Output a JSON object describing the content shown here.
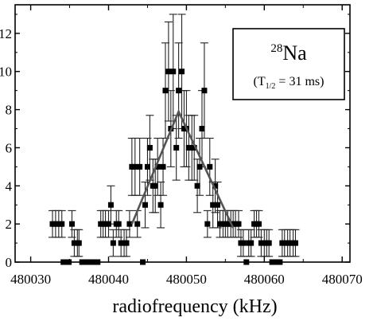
{
  "chart_data": {
    "type": "scatter",
    "xlabel": "radiofrequency (kHz)",
    "ylabel": "",
    "xlim": [
      480028,
      480071
    ],
    "ylim": [
      0,
      13.5
    ],
    "x_ticks": [
      "480030",
      "480040",
      "480050",
      "480060",
      "480070"
    ],
    "x_tick_values": [
      480030,
      480040,
      480050,
      480060,
      480070
    ],
    "y_ticks": [
      "0",
      "2",
      "4",
      "6",
      "8",
      "10",
      "12"
    ],
    "y_tick_values": [
      0,
      2,
      4,
      6,
      8,
      10,
      12
    ],
    "annotation": {
      "superscript": "28",
      "element": "Na",
      "half_life_open": "(T",
      "half_life_sub": "1/2",
      "half_life_rest": " = 31 ms)"
    },
    "series": [
      {
        "kind": "points_with_errorbars",
        "x": [
          480032.8,
          480033.2,
          480033.6,
          480034.0,
          480034.2,
          480034.5,
          480034.9,
          480035.3,
          480035.6,
          480036.0,
          480036.2,
          480036.6,
          480037.0,
          480037.3,
          480037.6,
          480038.0,
          480038.4,
          480038.6,
          480039.0,
          480039.3,
          480039.6,
          480040.0,
          480040.3,
          480040.6,
          480041.0,
          480041.3,
          480041.6,
          480042.0,
          480042.3,
          480042.7,
          480043.0,
          480043.4,
          480043.7,
          480044.0,
          480044.4,
          480044.7,
          480045.0,
          480045.3,
          480045.7,
          480046.0,
          480046.3,
          480046.7,
          480047.0,
          480047.3,
          480047.7,
          480048.0,
          480048.3,
          480048.7,
          480049.0,
          480049.4,
          480049.7,
          480050.0,
          480050.3,
          480050.7,
          480051.0,
          480051.4,
          480051.7,
          480052.0,
          480052.3,
          480052.7,
          480053.0,
          480053.4,
          480053.7,
          480054.0,
          480054.3,
          480054.7,
          480055.0,
          480055.3,
          480055.7,
          480056.0,
          480056.3,
          480056.7,
          480057.0,
          480057.3,
          480057.7,
          480058.0,
          480058.3,
          480058.7,
          480059.0,
          480059.3,
          480059.6,
          480060.0,
          480060.3,
          480060.6,
          480061.0,
          480061.3,
          480061.6,
          480062.0,
          480062.3,
          480062.6,
          480063.0,
          480063.3,
          480063.7,
          480064.0
        ],
        "y": [
          2,
          2,
          2,
          2,
          0,
          0,
          0,
          2,
          1,
          1,
          1,
          0,
          0,
          0,
          0,
          0,
          0,
          0,
          2,
          2,
          2,
          2,
          3,
          1,
          2,
          2,
          1,
          1,
          1,
          2,
          5,
          5,
          2,
          5,
          0,
          3,
          5,
          6,
          4,
          4,
          5,
          3,
          5,
          9,
          10,
          7,
          10,
          6,
          9,
          10,
          7,
          7,
          6,
          6,
          6,
          4,
          5,
          7,
          9,
          2,
          5,
          3,
          4,
          3,
          2,
          2,
          2,
          2,
          2,
          2,
          2,
          2,
          1,
          1,
          0,
          1,
          1,
          2,
          2,
          2,
          1,
          1,
          1,
          1,
          0,
          0,
          0,
          0,
          1,
          1,
          1,
          1,
          1,
          1
        ],
        "err": [
          0.7,
          0.7,
          0.7,
          0.7,
          0,
          0,
          0,
          0.7,
          0.7,
          0.7,
          0.7,
          0,
          0,
          0,
          0,
          0,
          0,
          0,
          0.7,
          0.7,
          0.7,
          0.7,
          1.0,
          0.7,
          0.7,
          0.7,
          0.7,
          0.7,
          0.7,
          0.7,
          1.5,
          1.5,
          0.7,
          1.5,
          0,
          1.2,
          1.5,
          1.7,
          1.4,
          1.4,
          1.5,
          1.2,
          1.5,
          2.5,
          2.6,
          2.0,
          3.0,
          1.7,
          2.5,
          3.0,
          2.0,
          2.0,
          1.7,
          1.7,
          1.7,
          1.4,
          1.5,
          2.0,
          2.5,
          0.7,
          1.5,
          1.2,
          1.4,
          1.2,
          0.7,
          0.7,
          0.7,
          0.7,
          0.7,
          0.7,
          0.7,
          0.7,
          0.7,
          0.7,
          0,
          0.7,
          0.7,
          0.7,
          0.7,
          0.7,
          0.7,
          0.7,
          0.7,
          0.7,
          0,
          0,
          0,
          0,
          0.7,
          0.7,
          0.7,
          0.7,
          0.7,
          0.7
        ]
      },
      {
        "kind": "fit_line",
        "x": [
          480043.0,
          480049.0,
          480056.0
        ],
        "y": [
          2.0,
          7.9,
          1.8
        ]
      }
    ]
  }
}
